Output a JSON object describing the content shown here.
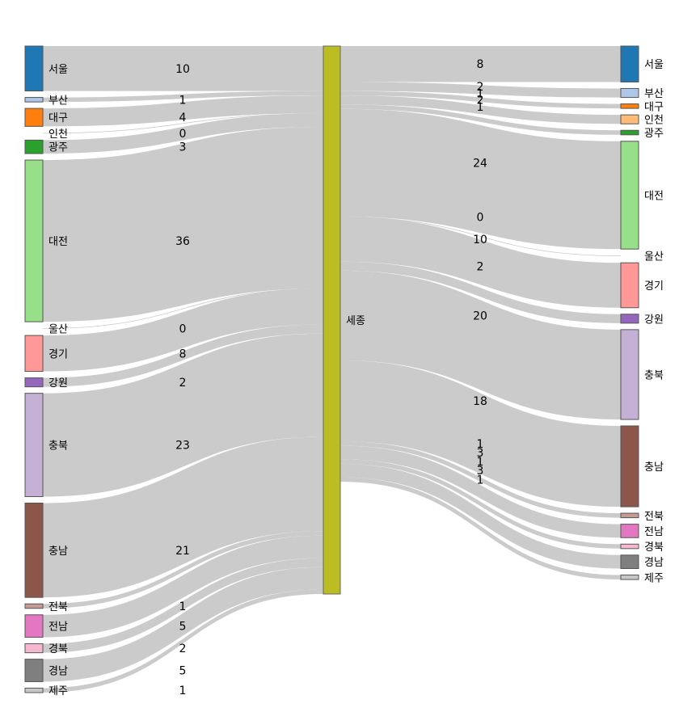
{
  "chart_data": {
    "type": "sankey",
    "title": "",
    "center": {
      "name": "세종",
      "color": "#bcbd22"
    },
    "sources": [
      {
        "name": "서울",
        "value": 10,
        "color": "#1f77b4"
      },
      {
        "name": "부산",
        "value": 1,
        "color": "#aec7e8"
      },
      {
        "name": "대구",
        "value": 4,
        "color": "#ff7f0e"
      },
      {
        "name": "인천",
        "value": 0,
        "color": "#ffbb78"
      },
      {
        "name": "광주",
        "value": 3,
        "color": "#2ca02c"
      },
      {
        "name": "대전",
        "value": 36,
        "color": "#98df8a"
      },
      {
        "name": "울산",
        "value": 0,
        "color": "#d62728"
      },
      {
        "name": "경기",
        "value": 8,
        "color": "#ff9896"
      },
      {
        "name": "강원",
        "value": 2,
        "color": "#9467bd"
      },
      {
        "name": "충북",
        "value": 23,
        "color": "#c5b0d5"
      },
      {
        "name": "충남",
        "value": 21,
        "color": "#8c564b"
      },
      {
        "name": "전북",
        "value": 1,
        "color": "#c49c94"
      },
      {
        "name": "전남",
        "value": 5,
        "color": "#e377c2"
      },
      {
        "name": "경북",
        "value": 2,
        "color": "#f7b6d2"
      },
      {
        "name": "경남",
        "value": 5,
        "color": "#7f7f7f"
      },
      {
        "name": "제주",
        "value": 1,
        "color": "#c7c7c7"
      }
    ],
    "targets": [
      {
        "name": "서울",
        "value": 8,
        "color": "#1f77b4"
      },
      {
        "name": "부산",
        "value": 2,
        "color": "#aec7e8"
      },
      {
        "name": "대구",
        "value": 1,
        "color": "#ff7f0e"
      },
      {
        "name": "인천",
        "value": 2,
        "color": "#ffbb78"
      },
      {
        "name": "광주",
        "value": 1,
        "color": "#2ca02c"
      },
      {
        "name": "대전",
        "value": 24,
        "color": "#98df8a"
      },
      {
        "name": "울산",
        "value": 0,
        "color": "#d62728"
      },
      {
        "name": "경기",
        "value": 10,
        "color": "#ff9896"
      },
      {
        "name": "강원",
        "value": 2,
        "color": "#9467bd"
      },
      {
        "name": "충북",
        "value": 20,
        "color": "#c5b0d5"
      },
      {
        "name": "충남",
        "value": 18,
        "color": "#8c564b"
      },
      {
        "name": "전북",
        "value": 1,
        "color": "#c49c94"
      },
      {
        "name": "전남",
        "value": 3,
        "color": "#e377c2"
      },
      {
        "name": "경북",
        "value": 1,
        "color": "#f7b6d2"
      },
      {
        "name": "경남",
        "value": 3,
        "color": "#7f7f7f"
      },
      {
        "name": "제주",
        "value": 1,
        "color": "#c7c7c7"
      }
    ],
    "link_color": "#c8c8c8"
  }
}
